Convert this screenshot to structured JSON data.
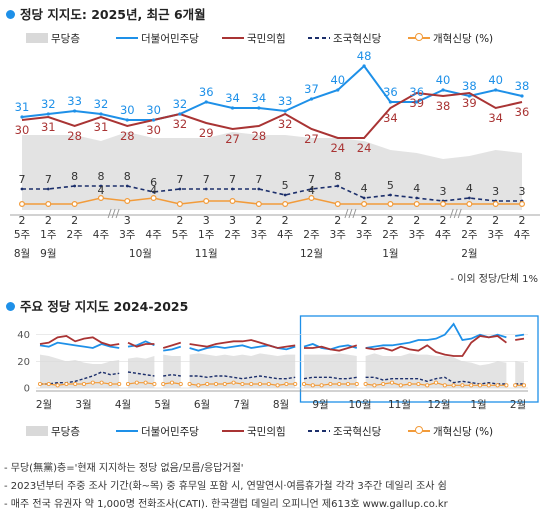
{
  "title1": "정당 지지도: 2025년, 최근 6개월",
  "title2": "주요 정당 지지도 2024-2025",
  "note": "- 이외 정당/단체 1%",
  "legend": [
    {
      "name": "무당층",
      "color": "#d9d9d9",
      "style": "area"
    },
    {
      "name": "더불어민주당",
      "color": "#1e90e8",
      "style": "line"
    },
    {
      "name": "국민의힘",
      "color": "#a93434",
      "style": "line"
    },
    {
      "name": "조국혁신당",
      "color": "#1c2f6b",
      "style": "dash"
    },
    {
      "name": "개혁신당 (%)",
      "color": "#f29b3a",
      "style": "marker"
    }
  ],
  "footnotes": [
    "- 무당(無黨)층='현재 지지하는 정당 없음/모름/응답거절'",
    "- 2023년부터 주중 조사 기간(화~목) 중 휴무일 포함 시, 연말연시·여름휴가철 각각 3주간 데일리 조사 쉼",
    "- 매주 전국 유권자 약 1,000명 전화조사(CATI). 한국갤럽 데일리 오피니언 제613호 www.gallup.co.kr"
  ],
  "colors": {
    "minjoo": "#1e90e8",
    "ppp": "#a93434",
    "cho": "#1c2f6b",
    "reform": "#f29b3a",
    "none": "#d9d9d9",
    "box": "#1e90e8"
  },
  "chart_data": [
    {
      "type": "line",
      "title": "정당 지지도: 2025년, 최근 6개월",
      "x": [
        "5주",
        "1주",
        "2주",
        "4주",
        "3주",
        "4주",
        "5주",
        "1주",
        "2주",
        "3주",
        "4주",
        "2주",
        "3주",
        "3주",
        "2주",
        "3주",
        "4주",
        "2주",
        "3주",
        "4주"
      ],
      "month_labels": [
        {
          "label": "8월",
          "index": 0
        },
        {
          "label": "9월",
          "index": 1
        },
        {
          "label": "10월",
          "index": 4.5
        },
        {
          "label": "11월",
          "index": 7
        },
        {
          "label": "12월",
          "index": 11
        },
        {
          "label": "1월",
          "index": 14
        },
        {
          "label": "2월",
          "index": 17
        }
      ],
      "break_markers": [
        3,
        12,
        16
      ],
      "series": [
        {
          "name": "더불어민주당",
          "values": [
            31,
            32,
            33,
            32,
            30,
            30,
            32,
            36,
            34,
            34,
            33,
            37,
            40,
            48,
            36,
            36,
            40,
            38,
            40,
            38
          ]
        },
        {
          "name": "국민의힘",
          "values": [
            30,
            31,
            28,
            31,
            28,
            30,
            32,
            29,
            27,
            28,
            32,
            27,
            24,
            24,
            34,
            39,
            38,
            39,
            34,
            36
          ]
        },
        {
          "name": "조국혁신당",
          "values": [
            7,
            7,
            8,
            8,
            8,
            6,
            7,
            7,
            7,
            7,
            5,
            7,
            8,
            4,
            5,
            4,
            3,
            4,
            3,
            3
          ]
        },
        {
          "name": "개혁신당 (%)",
          "values": [
            2,
            2,
            2,
            4,
            3,
            4,
            2,
            3,
            3,
            2,
            2,
            4,
            2,
            2,
            2,
            2,
            2,
            2,
            2,
            2
          ]
        },
        {
          "name": "무당층",
          "values": [
            25,
            25,
            25,
            23,
            26,
            24,
            24,
            24,
            26,
            25,
            25,
            24,
            24,
            23,
            20,
            19,
            17,
            18,
            20,
            19
          ]
        }
      ],
      "ylim": [
        0,
        52
      ],
      "data_labels": true,
      "grid": false
    },
    {
      "type": "line",
      "title": "주요 정당 지지도 2024-2025",
      "x_labels": [
        "2월",
        "3월",
        "4월",
        "5월",
        "6월",
        "7월",
        "8월",
        "9월",
        "10월",
        "11월",
        "12월",
        "1월",
        "2월"
      ],
      "yticks": [
        0,
        20,
        40
      ],
      "ylim": [
        0,
        45
      ],
      "highlight_range": [
        "9월",
        "2월"
      ],
      "series": [
        {
          "name": "더불어민주당",
          "values": [
            32,
            31,
            34,
            33,
            32,
            31,
            30,
            33,
            31,
            30,
            31,
            32,
            35,
            32,
            28,
            29,
            31,
            30,
            28,
            30,
            31,
            30,
            31,
            32,
            30,
            31,
            32,
            30,
            29,
            31,
            31,
            33,
            30,
            29,
            31,
            32,
            30,
            30,
            31,
            32,
            32,
            33,
            34,
            36,
            36,
            37,
            40,
            48,
            36,
            37,
            40,
            38,
            40,
            38,
            39,
            40
          ]
        },
        {
          "name": "국민의힘",
          "values": [
            33,
            34,
            38,
            39,
            35,
            37,
            38,
            34,
            32,
            33,
            34,
            31,
            33,
            33,
            30,
            32,
            34,
            33,
            32,
            31,
            33,
            34,
            35,
            35,
            36,
            34,
            32,
            30,
            31,
            32,
            30,
            30,
            31,
            29,
            28,
            30,
            32,
            30,
            29,
            30,
            28,
            31,
            29,
            28,
            32,
            27,
            25,
            24,
            24,
            34,
            39,
            38,
            39,
            34,
            36,
            37
          ]
        },
        {
          "name": "조국혁신당",
          "values": [
            3,
            3,
            4,
            4,
            5,
            7,
            9,
            12,
            10,
            11,
            12,
            11,
            10,
            9,
            9,
            10,
            9,
            9,
            9,
            8,
            9,
            9,
            8,
            7,
            8,
            9,
            8,
            7,
            7,
            8,
            7,
            8,
            8,
            8,
            7,
            7,
            8,
            8,
            8,
            6,
            7,
            7,
            7,
            7,
            5,
            7,
            8,
            4,
            5,
            4,
            3,
            4,
            3,
            3,
            3,
            3
          ]
        },
        {
          "name": "개혁신당 (%)",
          "values": [
            3,
            3,
            2,
            3,
            3,
            3,
            4,
            4,
            3,
            3,
            3,
            4,
            4,
            3,
            3,
            4,
            3,
            3,
            2,
            3,
            3,
            3,
            4,
            3,
            3,
            3,
            3,
            2,
            3,
            3,
            3,
            2,
            2,
            3,
            3,
            3,
            3,
            3,
            2,
            3,
            4,
            2,
            3,
            3,
            2,
            4,
            2,
            2,
            2,
            2,
            2,
            2,
            2,
            2,
            2,
            2
          ]
        },
        {
          "name": "무당층",
          "values": [
            25,
            24,
            22,
            20,
            21,
            19,
            18,
            18,
            20,
            21,
            22,
            23,
            22,
            24,
            25,
            24,
            24,
            25,
            26,
            25,
            24,
            25,
            24,
            25,
            24,
            26,
            25,
            24,
            25,
            25,
            25,
            25,
            25,
            25,
            26,
            25,
            24,
            24,
            26,
            24,
            24,
            24,
            26,
            25,
            25,
            24,
            24,
            23,
            20,
            19,
            17,
            18,
            20,
            19,
            20,
            19
          ]
        }
      ],
      "gaps_after": [
        9,
        13,
        16,
        29,
        36,
        53
      ],
      "grid": true
    }
  ]
}
